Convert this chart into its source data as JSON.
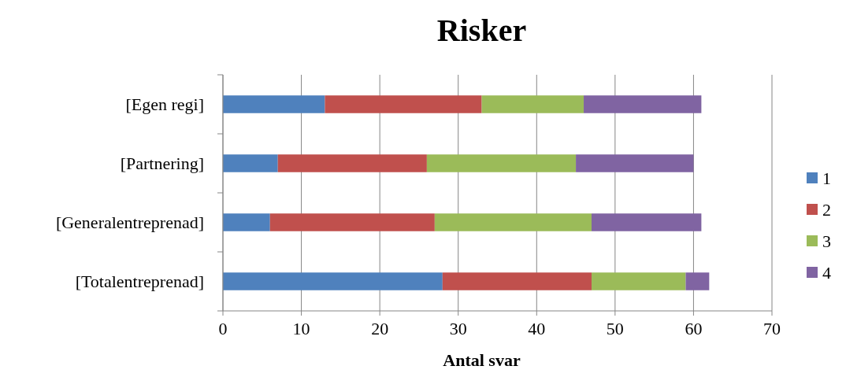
{
  "chart_data": {
    "type": "bar",
    "title": "Risker",
    "xlabel": "Antal svar",
    "orientation": "horizontal",
    "stacked": true,
    "categories": [
      "[Egen regi]",
      "[Partnering]",
      "[Generalentreprenad]",
      "[Totalentreprenad]"
    ],
    "series": [
      {
        "name": "1",
        "color": "#4f81bd",
        "values": [
          13,
          7,
          6,
          28
        ]
      },
      {
        "name": "2",
        "color": "#c0504d",
        "values": [
          20,
          19,
          21,
          19
        ]
      },
      {
        "name": "3",
        "color": "#9bbb59",
        "values": [
          13,
          19,
          20,
          12
        ]
      },
      {
        "name": "4",
        "color": "#8064a2",
        "values": [
          15,
          15,
          14,
          3
        ]
      }
    ],
    "xlim": [
      0,
      70
    ],
    "xticks": [
      0,
      10,
      20,
      30,
      40,
      50,
      60,
      70
    ],
    "grid": "x",
    "legend": "right"
  }
}
